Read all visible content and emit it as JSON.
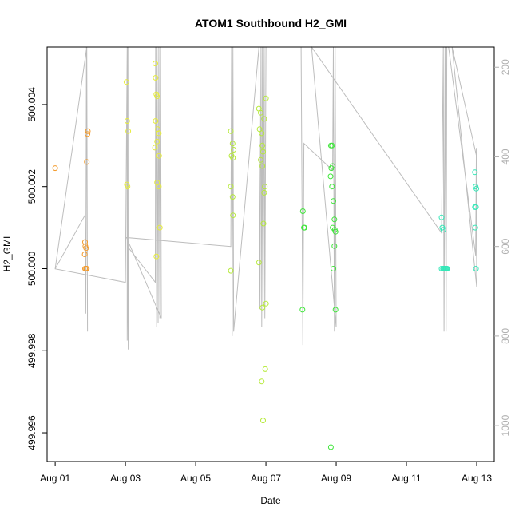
{
  "chart_data": {
    "type": "scatter",
    "title": "ATOM1 Southbound H2_GMI",
    "xlabel": "Date",
    "ylabel": "H2_GMI",
    "x_ticks": [
      "Aug 01",
      "Aug 03",
      "Aug 05",
      "Aug 07",
      "Aug 09",
      "Aug 11",
      "Aug 13"
    ],
    "x_tick_days": [
      1,
      3,
      5,
      7,
      9,
      11,
      13
    ],
    "xlim": [
      0.77,
      13.5
    ],
    "ylim": [
      499.9953,
      500.0054
    ],
    "y_ticks": [
      "499.996",
      "499.998",
      "500.000",
      "500.002",
      "500.004"
    ],
    "y_tick_values": [
      499.996,
      499.998,
      500.0,
      500.002,
      500.004
    ],
    "y2_ticks": [
      "200",
      "400",
      "600",
      "800",
      "1000"
    ],
    "y2_tick_values": [
      200,
      400,
      600,
      800,
      1000
    ],
    "y2lim": [
      1080,
      155
    ],
    "colors": {
      "line": "#bdbdbd",
      "axis": "#000000",
      "secondary_axis": "#b0b0b0"
    },
    "series": [
      {
        "color": "#f39a2a",
        "points": [
          [
            1.0,
            500.00245
          ],
          [
            1.85,
            500.00065
          ],
          [
            1.86,
            500.00055
          ],
          [
            1.88,
            500.0005
          ],
          [
            1.84,
            500.00035
          ],
          [
            1.9,
            500.0026
          ],
          [
            1.92,
            500.00328
          ],
          [
            1.93,
            500.00335
          ],
          [
            1.85,
            500.0
          ],
          [
            1.88,
            500.0
          ],
          [
            1.9,
            500.0
          ]
        ]
      },
      {
        "color": "#e6ec3e",
        "points": [
          [
            3.05,
            500.0036
          ],
          [
            3.08,
            500.00335
          ],
          [
            3.04,
            500.00205
          ],
          [
            3.06,
            500.002
          ],
          [
            3.03,
            500.00455
          ],
          [
            3.85,
            500.005
          ],
          [
            3.86,
            500.00465
          ],
          [
            3.88,
            500.00425
          ],
          [
            3.9,
            500.0042
          ],
          [
            3.86,
            500.0036
          ],
          [
            3.92,
            500.0034
          ],
          [
            3.95,
            500.0033
          ],
          [
            3.9,
            500.0031
          ],
          [
            3.84,
            500.00295
          ],
          [
            3.96,
            500.00275
          ],
          [
            3.9,
            500.0021
          ],
          [
            3.95,
            500.002
          ],
          [
            3.88,
            500.0003
          ],
          [
            3.98,
            500.001
          ]
        ]
      },
      {
        "color": "#b6ea3a",
        "points": [
          [
            6.0,
            500.00335
          ],
          [
            6.05,
            500.00305
          ],
          [
            6.08,
            500.0029
          ],
          [
            6.02,
            500.00275
          ],
          [
            6.06,
            500.0027
          ],
          [
            6.0,
            500.002
          ],
          [
            6.05,
            500.00175
          ],
          [
            6.06,
            500.0013
          ],
          [
            6.0,
            499.99995
          ],
          [
            6.8,
            500.0039
          ],
          [
            6.85,
            500.0038
          ],
          [
            6.82,
            500.0034
          ],
          [
            6.88,
            500.0033
          ],
          [
            6.9,
            500.003
          ],
          [
            6.92,
            500.00285
          ],
          [
            6.95,
            500.00365
          ],
          [
            7.0,
            500.00415
          ],
          [
            6.85,
            500.00265
          ],
          [
            6.9,
            500.0025
          ],
          [
            6.95,
            500.00185
          ],
          [
            6.97,
            500.002
          ],
          [
            6.93,
            500.0011
          ],
          [
            6.8,
            500.00015
          ],
          [
            6.9,
            499.99905
          ],
          [
            7.0,
            499.99915
          ],
          [
            6.88,
            499.99725
          ],
          [
            6.98,
            499.99755
          ],
          [
            6.92,
            499.9963
          ]
        ]
      },
      {
        "color": "#3fe63a",
        "points": [
          [
            8.05,
            500.0014
          ],
          [
            8.08,
            500.001
          ],
          [
            8.1,
            500.001
          ],
          [
            8.04,
            499.999
          ],
          [
            8.85,
            500.003
          ],
          [
            8.88,
            500.003
          ],
          [
            8.9,
            500.0025
          ],
          [
            8.86,
            500.00245
          ],
          [
            8.84,
            500.00225
          ],
          [
            8.88,
            500.002
          ],
          [
            8.92,
            500.00165
          ],
          [
            8.95,
            500.0012
          ],
          [
            8.9,
            500.001
          ],
          [
            8.96,
            500.00095
          ],
          [
            8.98,
            500.0009
          ],
          [
            8.95,
            500.00055
          ],
          [
            8.92,
            500.0
          ],
          [
            8.98,
            499.999
          ],
          [
            8.85,
            499.99565
          ]
        ]
      },
      {
        "color": "#34e8b8",
        "points": [
          [
            12.0,
            500.00125
          ],
          [
            12.02,
            500.001
          ],
          [
            12.05,
            500.00095
          ],
          [
            12.0,
            500.0
          ],
          [
            12.04,
            500.0
          ],
          [
            12.06,
            500.0
          ],
          [
            12.08,
            500.0
          ],
          [
            12.1,
            500.0
          ],
          [
            12.12,
            500.0
          ],
          [
            12.14,
            500.0
          ],
          [
            12.16,
            500.0
          ],
          [
            12.95,
            500.00235
          ],
          [
            12.97,
            500.002
          ],
          [
            12.99,
            500.00195
          ],
          [
            12.95,
            500.0015
          ],
          [
            12.98,
            500.0015
          ],
          [
            12.96,
            500.001
          ],
          [
            12.98,
            500.0
          ]
        ]
      }
    ],
    "line_path": [
      [
        1.0,
        650
      ],
      [
        1.85,
        530
      ],
      [
        1.87,
        750
      ],
      [
        1.89,
        120
      ],
      [
        1.92,
        790
      ],
      [
        1.9,
        120
      ],
      [
        1.0,
        650
      ],
      [
        3.0,
        680
      ],
      [
        3.05,
        120
      ],
      [
        3.05,
        810
      ],
      [
        3.07,
        120
      ],
      [
        3.08,
        830
      ],
      [
        3.06,
        600
      ],
      [
        3.85,
        680
      ],
      [
        3.86,
        120
      ],
      [
        3.88,
        780
      ],
      [
        3.9,
        120
      ],
      [
        3.93,
        770
      ],
      [
        3.95,
        120
      ],
      [
        3.98,
        760
      ],
      [
        4.0,
        120
      ],
      [
        4.02,
        760
      ],
      [
        3.03,
        580
      ],
      [
        6.0,
        600
      ],
      [
        6.02,
        120
      ],
      [
        6.04,
        800
      ],
      [
        6.06,
        120
      ],
      [
        6.08,
        790
      ],
      [
        6.8,
        120
      ],
      [
        6.83,
        740
      ],
      [
        6.86,
        120
      ],
      [
        6.88,
        780
      ],
      [
        6.9,
        120
      ],
      [
        6.92,
        770
      ],
      [
        6.95,
        120
      ],
      [
        6.97,
        760
      ],
      [
        7.0,
        120
      ],
      [
        6.5,
        120
      ],
      [
        7.6,
        100
      ],
      [
        8.0,
        120
      ],
      [
        8.05,
        820
      ],
      [
        8.08,
        370
      ],
      [
        8.9,
        430
      ],
      [
        8.92,
        120
      ],
      [
        8.95,
        790
      ],
      [
        8.97,
        120
      ],
      [
        9.0,
        780
      ],
      [
        8.3,
        120
      ],
      [
        12.0,
        570
      ],
      [
        12.05,
        120
      ],
      [
        12.07,
        790
      ],
      [
        12.1,
        120
      ],
      [
        12.13,
        790
      ],
      [
        12.15,
        120
      ],
      [
        12.2,
        120
      ],
      [
        12.97,
        620
      ],
      [
        12.99,
        380
      ],
      [
        13.0,
        690
      ],
      [
        12.3,
        120
      ],
      [
        13.0,
        400
      ]
    ]
  }
}
